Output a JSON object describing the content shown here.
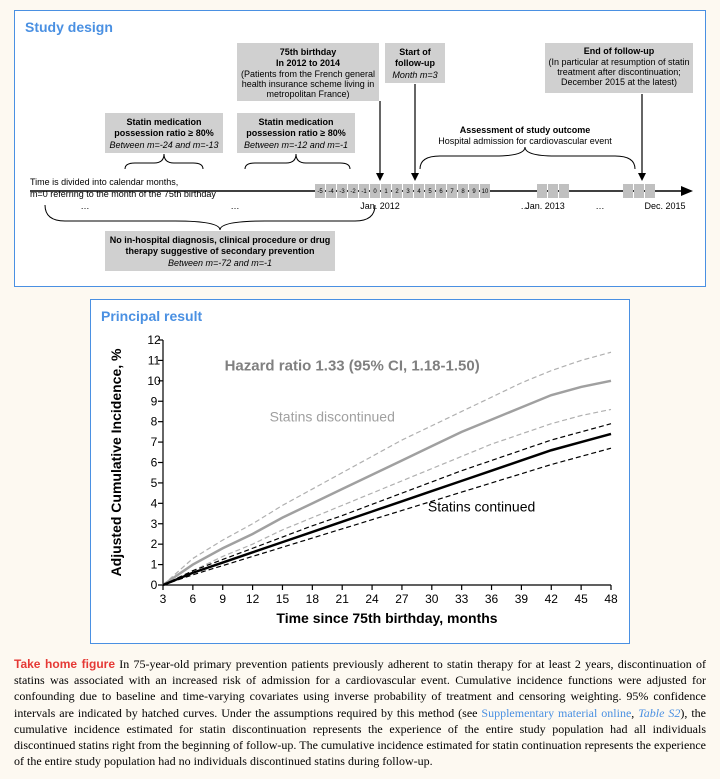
{
  "study_design": {
    "title": "Study design",
    "boxes": {
      "birthday": {
        "line1": "75th birthday",
        "line2": "In 2012 to 2014",
        "line3": "(Patients from the French general",
        "line4": "health insurance scheme living in",
        "line5": "metropolitan France)"
      },
      "start_followup": {
        "line1": "Start of",
        "line2": "follow-up",
        "line3": "Month m=3"
      },
      "end_followup": {
        "line1": "End of follow-up",
        "line2": "(In particular at resumption of statin",
        "line3": "treatment after discontinuation;",
        "line4": "December 2015 at the latest)"
      },
      "ratio1": {
        "line1": "Statin medication",
        "line2": "possession ratio ≥ 80%",
        "line3": "Between m=-24 and m=-13"
      },
      "ratio2": {
        "line1": "Statin medication",
        "line2": "possession ratio ≥ 80%",
        "line3": "Between m=-12 and m=-1"
      },
      "assessment": {
        "line1": "Assessment of study outcome",
        "line2": "Hospital admission for cardiovascular event"
      },
      "no_hospital": {
        "line1": "No in-hospital diagnosis, clinical procedure or drug",
        "line2": "therapy suggestive of secondary prevention",
        "line3": "Between m=-72 and m=-1"
      }
    },
    "timeline_note": {
      "line1": "Time is divided into calendar months,",
      "line2": "m=0 referring to the month of the 75th birthday"
    },
    "timeline_labels": [
      "Jan. 2012",
      "Jan. 2013",
      "Dec. 2015"
    ],
    "tick_labels": [
      "-5",
      "-4",
      "-3",
      "-2",
      "-1",
      "0",
      "1",
      "2",
      "3",
      "",
      "",
      "",
      "",
      "",
      "",
      "",
      ""
    ],
    "month_labels_right": [
      "3",
      "4",
      "5",
      "6",
      "7",
      "8",
      "9",
      "10"
    ],
    "ellipsis": "…"
  },
  "chart": {
    "title": "Principal result",
    "hazard_text": "Hazard ratio 1.33 (95% CI, 1.18-1.50)",
    "label_discontinued": "Statins discontinued",
    "label_continued": "Statins continued",
    "y_axis_title": "Adjusted Cumulative Incidence, %",
    "x_axis_title": "Time since 75th birthday, months",
    "ylim": [
      0,
      12
    ],
    "y_ticks": [
      0,
      1,
      2,
      3,
      4,
      5,
      6,
      7,
      8,
      9,
      10,
      11,
      12
    ],
    "xlim": [
      3,
      48
    ],
    "x_ticks": [
      3,
      6,
      9,
      12,
      15,
      18,
      21,
      24,
      27,
      30,
      33,
      36,
      39,
      42,
      45,
      48
    ],
    "background_color": "#ffffff",
    "colors": {
      "discontinued_line": "#a0a0a0",
      "discontinued_ci": "#b0b0b0",
      "continued_line": "#000000",
      "continued_ci": "#000000",
      "hazard_text_color": "#808080"
    },
    "line_widths": {
      "main": 2.5,
      "ci": 1.2
    },
    "dash": "5,3",
    "series": {
      "discontinued": {
        "x": [
          3,
          6,
          9,
          12,
          15,
          18,
          21,
          24,
          27,
          30,
          33,
          36,
          39,
          42,
          45,
          48
        ],
        "y": [
          0,
          1.0,
          1.8,
          2.5,
          3.3,
          4.0,
          4.7,
          5.4,
          6.1,
          6.8,
          7.5,
          8.1,
          8.7,
          9.3,
          9.7,
          10.0
        ],
        "ci_upper": [
          0,
          1.3,
          2.2,
          3.0,
          3.9,
          4.7,
          5.5,
          6.3,
          7.1,
          7.8,
          8.5,
          9.2,
          9.9,
          10.5,
          11.0,
          11.4
        ],
        "ci_lower": [
          0,
          0.7,
          1.4,
          2.0,
          2.7,
          3.3,
          3.9,
          4.5,
          5.1,
          5.7,
          6.3,
          6.9,
          7.4,
          7.9,
          8.3,
          8.6
        ]
      },
      "continued": {
        "x": [
          3,
          6,
          9,
          12,
          15,
          18,
          21,
          24,
          27,
          30,
          33,
          36,
          39,
          42,
          45,
          48
        ],
        "y": [
          0,
          0.6,
          1.1,
          1.6,
          2.1,
          2.6,
          3.1,
          3.6,
          4.1,
          4.6,
          5.1,
          5.6,
          6.1,
          6.6,
          7.0,
          7.4
        ],
        "ci_upper": [
          0,
          0.7,
          1.25,
          1.8,
          2.35,
          2.9,
          3.4,
          3.95,
          4.5,
          5.05,
          5.6,
          6.1,
          6.6,
          7.1,
          7.5,
          7.9
        ],
        "ci_lower": [
          0,
          0.5,
          0.95,
          1.4,
          1.85,
          2.3,
          2.75,
          3.2,
          3.65,
          4.1,
          4.55,
          5.0,
          5.45,
          5.9,
          6.3,
          6.7
        ]
      }
    }
  },
  "caption": {
    "heading": "Take home figure",
    "body_pre": " In 75-year-old primary prevention patients previously adherent to statin therapy for at least 2 years, discontinuation of statins was associated with an increased risk of admission for a cardiovascular event. Cumulative incidence functions were adjusted for confounding due to baseline and time-varying covariates using inverse probability of treatment and censoring weighting. 95% confidence intervals are indicated by hatched curves. Under the assumptions required by this method (see ",
    "supp1": "Supplementary material online",
    "comma": ", ",
    "supp2": "Table S2",
    "body_post": "), the cumulative incidence estimated for statin discontinuation represents the experience of the entire study population had all individuals discontinued statins right from the beginning of follow-up. The cumulative incidence estimated for statin continuation represents the experience of the entire study population had no individuals discontinued statins during follow-up."
  }
}
